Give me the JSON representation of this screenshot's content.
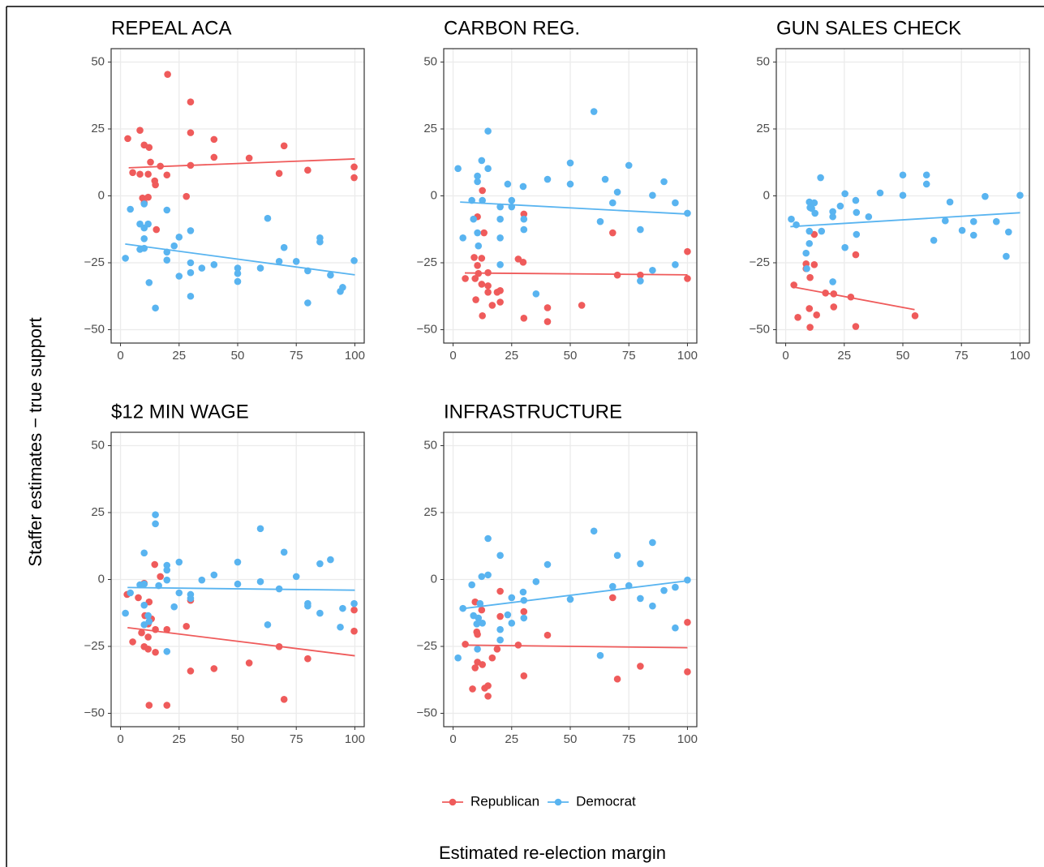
{
  "x_label": "Estimated re-election margin",
  "y_label": "Staffer estimates − true support",
  "chart_data": [
    {
      "type": "scatter",
      "title": "REPEAL ACA",
      "xlim": [
        -4,
        104
      ],
      "ylim": [
        -55,
        55
      ],
      "grid": true,
      "xticks": [
        0,
        25,
        50,
        75,
        100
      ],
      "yticks": [
        {
          "value": -50,
          "label": "−50"
        },
        {
          "value": -25,
          "label": "−25"
        },
        0,
        25,
        50
      ],
      "series": [
        {
          "name": "Republican",
          "color": "#ef5b5b",
          "x": [
            3.1,
            5.2,
            8.3,
            8.3,
            10.1,
            9.4,
            10.1,
            11.8,
            12.2,
            11.8,
            12.8,
            14.6,
            14.9,
            15.3,
            17,
            19.8,
            20.1,
            28.1,
            29.9,
            29.9,
            29.9,
            39.9,
            39.9,
            54.9,
            67.7,
            69.8,
            79.9,
            99.7,
            99.7
          ],
          "values": [
            21.4,
            8.7,
            24.5,
            8.1,
            19,
            -0.8,
            -2.6,
            8.1,
            18.1,
            -0.5,
            12.6,
            5.6,
            4.1,
            -12.6,
            11.1,
            7.8,
            45.4,
            -0.2,
            35.1,
            23.6,
            11.4,
            21.1,
            14.4,
            14.1,
            8.4,
            18.7,
            9.6,
            10.8,
            6.8
          ],
          "fit": {
            "x": [
              3.5,
              100
            ],
            "values": [
              10.5,
              13.8
            ]
          }
        },
        {
          "name": "Democrat",
          "color": "#59b4f0",
          "x": [
            2.1,
            4.2,
            8.3,
            8.3,
            10.1,
            10.1,
            10.1,
            10.1,
            11.8,
            12.2,
            14.9,
            19.8,
            19.8,
            19.8,
            22.9,
            25,
            25,
            29.9,
            29.9,
            29.9,
            29.9,
            34.7,
            39.9,
            50,
            50,
            50,
            59.7,
            62.8,
            67.7,
            69.8,
            75,
            79.9,
            79.9,
            85.1,
            85.1,
            89.6,
            93.8,
            94.8,
            99.7
          ],
          "values": [
            -23.3,
            -5,
            -10.5,
            -20,
            -3,
            -12,
            -16,
            -19.6,
            -10.5,
            -32.4,
            -41.9,
            -5.3,
            -21,
            -24,
            -18.7,
            -15.4,
            -30,
            -13,
            -25,
            -28.7,
            -37.5,
            -27,
            -25.7,
            -27,
            -29,
            -32,
            -27,
            -8.4,
            -24.5,
            -19.3,
            -24.5,
            -28,
            -40,
            -15.7,
            -17.2,
            -29.6,
            -35.7,
            -34.2,
            -24.2
          ],
          "fit": {
            "x": [
              2,
              100
            ],
            "values": [
              -18,
              -29.5
            ]
          }
        }
      ]
    },
    {
      "type": "scatter",
      "title": "CARBON REG.",
      "xlim": [
        -4,
        104
      ],
      "ylim": [
        -55,
        55
      ],
      "grid": true,
      "xticks": [
        0,
        25,
        50,
        75,
        100
      ],
      "yticks": [
        {
          "value": -50,
          "label": "−50"
        },
        {
          "value": -25,
          "label": "−25"
        },
        0,
        25,
        50
      ],
      "series": [
        {
          "color": "#ef5b5b",
          "x": [
            5.2,
            9,
            9.4,
            9.7,
            10.4,
            10.4,
            10.8,
            12.2,
            12.2,
            12.5,
            12.5,
            13.2,
            14.9,
            14.9,
            14.9,
            16.7,
            18.8,
            20.1,
            20.1,
            27.8,
            29.9,
            30.2,
            30.2,
            40.3,
            40.3,
            54.9,
            68.1,
            70.1,
            79.9,
            100,
            100
          ],
          "values": [
            -30.9,
            -23,
            -30.9,
            -38.8,
            -7.8,
            -26,
            -29,
            -23.3,
            -33,
            2,
            -44.8,
            -13.8,
            -33.6,
            -28.7,
            -36,
            -40.9,
            -36,
            -39.7,
            -35.4,
            -23.6,
            -24.8,
            -6.8,
            -45.7,
            -41.8,
            -47,
            -40.9,
            -13.8,
            -29.6,
            -29.6,
            -20.8,
            -30.9
          ],
          "fit": {
            "x": [
              5,
              100
            ],
            "values": [
              -28.8,
              -29.5
            ]
          }
        },
        {
          "color": "#59b4f0",
          "x": [
            2.1,
            4.2,
            8,
            8.7,
            10.4,
            10.4,
            10.4,
            10.8,
            12.2,
            12.5,
            14.9,
            14.9,
            20.1,
            20.1,
            20.1,
            20.1,
            23.3,
            25,
            25,
            29.9,
            30.2,
            30.2,
            35.4,
            40.3,
            50,
            50,
            60.1,
            62.8,
            64.9,
            68.1,
            70.1,
            75,
            79.9,
            79.9,
            85.1,
            85.1,
            90,
            94.8,
            94.8,
            100
          ],
          "values": [
            10.2,
            -15.7,
            -1.7,
            -8.7,
            7.4,
            5.3,
            -13.8,
            -18.7,
            13.2,
            -1.7,
            10.2,
            24.2,
            -4.1,
            -8.7,
            -15.7,
            -25.7,
            4.4,
            -1.7,
            -4.1,
            3.5,
            -8.7,
            -12.6,
            -36.6,
            6.2,
            12.3,
            4.4,
            31.5,
            -9.6,
            6.2,
            -2.6,
            1.4,
            11.4,
            -12.6,
            -31.8,
            0.2,
            -27.8,
            5.3,
            -2.6,
            -25.7,
            -6.5
          ],
          "fit": {
            "x": [
              3,
              100
            ],
            "values": [
              -2.3,
              -6.8
            ]
          }
        }
      ]
    },
    {
      "type": "scatter",
      "title": "GUN SALES CHECK",
      "xlim": [
        -4,
        104
      ],
      "ylim": [
        -55,
        55
      ],
      "grid": true,
      "xticks": [
        0,
        25,
        50,
        75,
        100
      ],
      "yticks": [
        {
          "value": -50,
          "label": "−50"
        },
        {
          "value": -25,
          "label": "−25"
        },
        0,
        25,
        50
      ],
      "series": [
        {
          "color": "#ef5b5b",
          "x": [
            3.5,
            5.2,
            8.7,
            8.7,
            10.1,
            10.4,
            10.4,
            12.2,
            12.2,
            13.2,
            17,
            20.5,
            20.5,
            27.8,
            29.9,
            29.9,
            55.2
          ],
          "values": [
            -33.3,
            -45.4,
            -25.4,
            -27.2,
            -42.1,
            -49.1,
            -30.5,
            -14.4,
            -25.7,
            -44.5,
            -36.3,
            -36.6,
            -41.5,
            -37.8,
            -22,
            -48.8,
            -44.8
          ],
          "fit": {
            "x": [
              3,
              55
            ],
            "values": [
              -34,
              -42.5
            ]
          }
        },
        {
          "color": "#59b4f0",
          "x": [
            2.4,
            4.5,
            8.7,
            9,
            10.1,
            10.1,
            10.1,
            10.4,
            11.1,
            12.2,
            12.5,
            14.9,
            15.3,
            20.1,
            20.1,
            20.1,
            23.3,
            25.3,
            25.3,
            29.9,
            30.2,
            30.2,
            35.4,
            40.3,
            50,
            50,
            60.1,
            60.1,
            63.2,
            70.1,
            68.1,
            75.3,
            80.2,
            80.2,
            85.1,
            89.9,
            94.1,
            95.1,
            100
          ],
          "values": [
            -8.7,
            -10.8,
            -21.4,
            -27.2,
            -17.8,
            -13.2,
            -2.3,
            -4.4,
            -4.7,
            -2.6,
            -6.5,
            6.8,
            -13.2,
            -5.9,
            -7.8,
            -32.1,
            -3.8,
            0.8,
            -19.3,
            -1.7,
            -6.2,
            -14.4,
            -7.8,
            1.1,
            0.2,
            7.8,
            4.4,
            7.8,
            -16.6,
            -2.3,
            -9.3,
            -12.9,
            -9.6,
            -14.7,
            -0.2,
            -9.6,
            -22.6,
            -13.5,
            0.2
          ],
          "fit": {
            "x": [
              2,
              100
            ],
            "values": [
              -11.5,
              -6.3
            ]
          }
        }
      ]
    },
    {
      "type": "scatter",
      "title": "$12 MIN WAGE",
      "xlim": [
        -4,
        104
      ],
      "ylim": [
        -55,
        55
      ],
      "grid": true,
      "xticks": [
        0,
        25,
        50,
        75,
        100
      ],
      "yticks": [
        {
          "value": -50,
          "label": "−50"
        },
        {
          "value": -25,
          "label": "−25"
        },
        0,
        25,
        50
      ],
      "series": [
        {
          "color": "#ef5b5b",
          "x": [
            2.8,
            5.2,
            7.6,
            9,
            10.1,
            10.1,
            10.4,
            11.8,
            11.8,
            11.8,
            12.2,
            12.2,
            13.2,
            14.6,
            14.9,
            14.9,
            17,
            19.8,
            19.8,
            28.1,
            29.9,
            29.9,
            39.9,
            54.9,
            67.7,
            69.8,
            79.9,
            99.7,
            99.7
          ],
          "values": [
            -5.6,
            -23.3,
            -6.8,
            -19.9,
            -1.4,
            -25.1,
            -13.5,
            -16.6,
            -26,
            -21.5,
            -8.4,
            -47,
            -14.7,
            5.6,
            -27.2,
            -18.7,
            1.1,
            -18.7,
            -47,
            -17.5,
            -7.8,
            -34.2,
            -33.3,
            -31.2,
            -25.1,
            -44.8,
            -29.6,
            -11.4,
            -19.3
          ],
          "fit": {
            "x": [
              3,
              100
            ],
            "values": [
              -18,
              -28.5
            ]
          }
        },
        {
          "color": "#59b4f0",
          "x": [
            2.1,
            4.2,
            8.3,
            10.1,
            10.1,
            10.1,
            10.1,
            11.8,
            12.2,
            14.9,
            14.9,
            16.3,
            19.8,
            19.8,
            19.8,
            19.8,
            22.9,
            25,
            25,
            29.9,
            29.9,
            34.7,
            39.9,
            50,
            50,
            59.7,
            59.7,
            62.8,
            67.7,
            69.8,
            75,
            79.9,
            79.9,
            85.1,
            85.1,
            89.6,
            93.8,
            94.8,
            99.7
          ],
          "values": [
            -12.6,
            -5,
            -2,
            9.9,
            -16.9,
            -9.6,
            -1.7,
            -13.5,
            -15.7,
            24.2,
            20.8,
            -2.3,
            5.3,
            3.5,
            -0.2,
            -26.9,
            -10.2,
            6.5,
            -5,
            -5.6,
            -7.1,
            -0.2,
            1.7,
            6.5,
            -1.7,
            -0.8,
            19,
            -16.9,
            -3.5,
            10.2,
            1.1,
            -9,
            -9.9,
            5.9,
            -12.6,
            7.4,
            -17.8,
            -10.8,
            -9
          ],
          "fit": {
            "x": [
              3,
              100
            ],
            "values": [
              -3,
              -4
            ]
          }
        }
      ]
    },
    {
      "type": "scatter",
      "title": "INFRASTRUCTURE",
      "xlim": [
        -4,
        104
      ],
      "ylim": [
        -55,
        55
      ],
      "grid": true,
      "xticks": [
        0,
        25,
        50,
        75,
        100
      ],
      "yticks": [
        {
          "value": -50,
          "label": "−50"
        },
        {
          "value": -25,
          "label": "−25"
        },
        0,
        25,
        50
      ],
      "series": [
        {
          "color": "#ef5b5b",
          "x": [
            5.2,
            8.3,
            9.4,
            9.4,
            10.1,
            10.4,
            10.4,
            12.2,
            12.5,
            13.5,
            14.9,
            14.9,
            16.7,
            18.8,
            20.1,
            20.1,
            27.8,
            30.2,
            30.2,
            40.3,
            68.1,
            70.1,
            79.9,
            100,
            100
          ],
          "values": [
            -24.2,
            -40.9,
            -8.4,
            -33,
            -19.6,
            -20.5,
            -30.9,
            -11.4,
            -31.8,
            -40.6,
            -39.7,
            -43.6,
            -29.3,
            -26,
            -4.4,
            -13.8,
            -24.5,
            -12,
            -36,
            -20.8,
            -6.8,
            -37.2,
            -32.4,
            -16,
            -34.5
          ],
          "fit": {
            "x": [
              5,
              100
            ],
            "values": [
              -24.5,
              -25.5
            ]
          }
        },
        {
          "color": "#59b4f0",
          "x": [
            2.1,
            4.2,
            8,
            8.7,
            10.1,
            10.4,
            10.8,
            11.5,
            12.2,
            12.5,
            14.9,
            14.9,
            20.1,
            20.1,
            20.1,
            23.3,
            25,
            25,
            29.9,
            30.2,
            30.2,
            35.4,
            40.3,
            50,
            60.1,
            62.8,
            68.1,
            70.1,
            75,
            79.9,
            79.9,
            85.1,
            85.1,
            90,
            94.8,
            94.8,
            100
          ],
          "values": [
            -29.3,
            -10.8,
            -2,
            -13.5,
            -16.6,
            -26,
            -14.4,
            -9,
            1.1,
            -16.3,
            15.3,
            1.7,
            9,
            -18.7,
            -22.6,
            -13.2,
            -6.8,
            -16.3,
            -4.7,
            -7.8,
            -14.4,
            -0.8,
            5.6,
            -7.4,
            18.1,
            -28.4,
            -2.6,
            9,
            -2.3,
            5.9,
            -7.1,
            -9.9,
            13.8,
            -4.1,
            -18.1,
            -2.9,
            -0.2
          ],
          "fit": {
            "x": [
              3,
              100
            ],
            "values": [
              -11,
              -0.5
            ]
          }
        }
      ]
    }
  ]
}
